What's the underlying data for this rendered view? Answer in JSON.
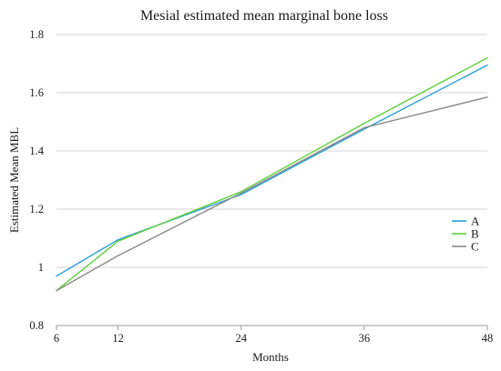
{
  "chart_data": {
    "type": "line",
    "title": "Mesial estimated mean marginal bone loss",
    "xlabel": "Months",
    "ylabel": "Estimated Mean MBL",
    "x": [
      6,
      12,
      24,
      36,
      48
    ],
    "x_tick_labels": [
      "6",
      "12",
      "24",
      "36",
      "48"
    ],
    "y_ticks": [
      0.8,
      1.0,
      1.2,
      1.4,
      1.6,
      1.8
    ],
    "y_tick_labels": [
      "0.8",
      "1",
      "1.2",
      "1.4",
      "1.6",
      "1.8"
    ],
    "ylim": [
      0.8,
      1.8
    ],
    "grid": "horizontal",
    "legend_position": "right",
    "series": [
      {
        "name": "A",
        "color": "#2a9fd6",
        "values": [
          0.97,
          1.095,
          1.25,
          1.475,
          1.695
        ]
      },
      {
        "name": "B",
        "color": "#5fcf3a",
        "values": [
          0.92,
          1.09,
          1.26,
          1.495,
          1.72
        ]
      },
      {
        "name": "C",
        "color": "#8a8a8a",
        "values": [
          0.92,
          1.04,
          1.255,
          1.48,
          1.585
        ]
      }
    ]
  }
}
